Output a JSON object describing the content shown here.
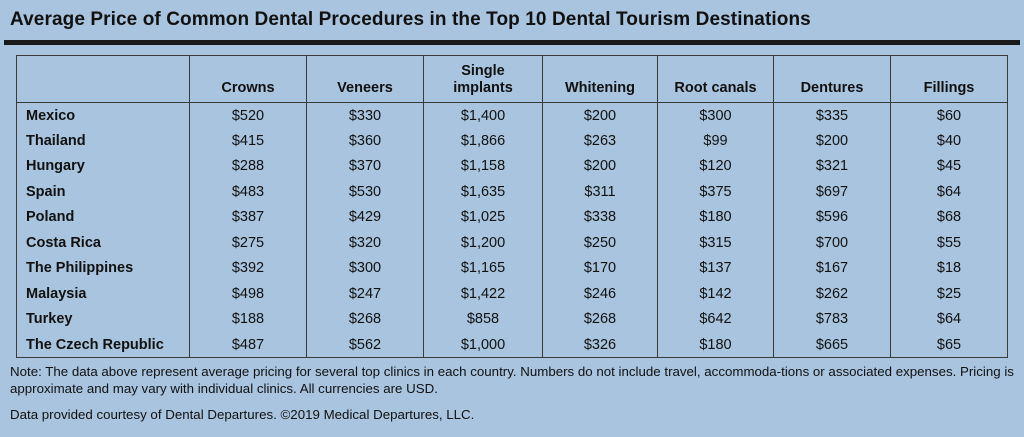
{
  "title": "Average Price of Common Dental Procedures in the Top 10 Dental Tourism Destinations",
  "chart_data": {
    "type": "table",
    "columns": [
      "",
      "Crowns",
      "Veneers",
      "Single implants",
      "Whitening",
      "Root canals",
      "Dentures",
      "Fillings"
    ],
    "rows": [
      [
        "Mexico",
        "$520",
        "$330",
        "$1,400",
        "$200",
        "$300",
        "$335",
        "$60"
      ],
      [
        "Thailand",
        "$415",
        "$360",
        "$1,866",
        "$263",
        "$99",
        "$200",
        "$40"
      ],
      [
        "Hungary",
        "$288",
        "$370",
        "$1,158",
        "$200",
        "$120",
        "$321",
        "$45"
      ],
      [
        "Spain",
        "$483",
        "$530",
        "$1,635",
        "$311",
        "$375",
        "$697",
        "$64"
      ],
      [
        "Poland",
        "$387",
        "$429",
        "$1,025",
        "$338",
        "$180",
        "$596",
        "$68"
      ],
      [
        "Costa Rica",
        "$275",
        "$320",
        "$1,200",
        "$250",
        "$315",
        "$700",
        "$55"
      ],
      [
        "The Philippines",
        "$392",
        "$300",
        "$1,165",
        "$170",
        "$137",
        "$167",
        "$18"
      ],
      [
        "Malaysia",
        "$498",
        "$247",
        "$1,422",
        "$246",
        "$142",
        "$262",
        "$25"
      ],
      [
        "Turkey",
        "$188",
        "$268",
        "$858",
        "$268",
        "$642",
        "$783",
        "$64"
      ],
      [
        "The Czech Republic",
        "$487",
        "$562",
        "$1,000",
        "$326",
        "$180",
        "$665",
        "$65"
      ]
    ]
  },
  "note": "Note: The data above represent average pricing for several top clinics in each country. Numbers do not include travel, accommoda-tions or associated expenses. Pricing is approximate and may vary with individual clinics. All currencies are USD.",
  "credit": "Data provided courtesy of Dental Departures. ©2019 Medical Departures, LLC.",
  "colors": {
    "background": "#a8c4de",
    "rule": "#1a1a1a",
    "text": "#111111"
  }
}
